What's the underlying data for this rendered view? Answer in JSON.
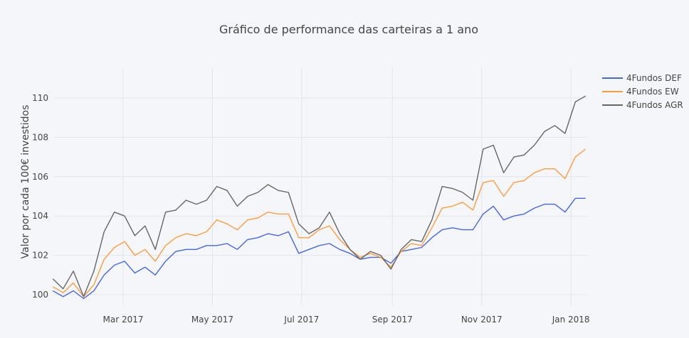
{
  "chart_data": {
    "type": "line",
    "title": "Gráfico de performance das carteiras a 1 ano",
    "xlabel": "",
    "ylabel": "Valor por cada 100€ investidos",
    "ylim": [
      99.4,
      111.5
    ],
    "xlim": [
      "2017-01-12",
      "2018-01-13"
    ],
    "yticks": [
      100,
      102,
      104,
      106,
      108,
      110
    ],
    "xticks": [
      {
        "date": "2017-03-01",
        "label": "Mar 2017"
      },
      {
        "date": "2017-05-01",
        "label": "May 2017"
      },
      {
        "date": "2017-07-01",
        "label": "Jul 2017"
      },
      {
        "date": "2017-09-01",
        "label": "Sep 2017"
      },
      {
        "date": "2017-11-01",
        "label": "Nov 2017"
      },
      {
        "date": "2018-01-01",
        "label": "Jan 2018"
      }
    ],
    "grid": true,
    "legend_position": "top-right",
    "x_start": "2017-01-12",
    "x_step_days": 7,
    "series": [
      {
        "name": "4Fundos DEF",
        "color": "#4467e6",
        "values": [
          100.2,
          99.9,
          100.2,
          99.8,
          100.2,
          101.0,
          101.5,
          101.7,
          101.1,
          101.4,
          101.0,
          101.7,
          102.2,
          102.3,
          102.3,
          102.5,
          102.5,
          102.6,
          102.3,
          102.8,
          102.9,
          103.1,
          103.0,
          103.2,
          102.1,
          102.3,
          102.5,
          102.6,
          102.3,
          102.1,
          101.8,
          101.9,
          101.9,
          101.6,
          102.2,
          102.3,
          102.4,
          102.9,
          103.3,
          103.4,
          103.3,
          103.3,
          104.1,
          104.5,
          103.8,
          104.0,
          104.1,
          104.4,
          104.6,
          104.6,
          104.2,
          104.9,
          104.9
        ]
      },
      {
        "name": "4Fundos EW",
        "color": "#ff9c3f",
        "values": [
          100.4,
          100.1,
          100.6,
          99.9,
          100.5,
          101.8,
          102.4,
          102.7,
          102.0,
          102.3,
          101.7,
          102.5,
          102.9,
          103.1,
          103.0,
          103.2,
          103.8,
          103.6,
          103.3,
          103.8,
          103.9,
          104.2,
          104.1,
          104.1,
          102.9,
          102.9,
          103.3,
          103.5,
          102.8,
          102.3,
          101.9,
          102.1,
          101.9,
          101.4,
          102.2,
          102.6,
          102.5,
          103.4,
          104.4,
          104.5,
          104.7,
          104.3,
          105.7,
          105.8,
          105.0,
          105.7,
          105.8,
          106.2,
          106.4,
          106.4,
          105.9,
          107.0,
          107.4
        ]
      },
      {
        "name": "4Fundos AGR",
        "color": "#666666",
        "values": [
          100.8,
          100.3,
          101.2,
          99.9,
          101.2,
          103.2,
          104.2,
          104.0,
          103.0,
          103.5,
          102.3,
          104.2,
          104.3,
          104.8,
          104.6,
          104.8,
          105.5,
          105.3,
          104.5,
          105.0,
          105.2,
          105.6,
          105.3,
          105.2,
          103.6,
          103.1,
          103.4,
          104.2,
          103.1,
          102.3,
          101.8,
          102.2,
          102.0,
          101.3,
          102.3,
          102.8,
          102.7,
          103.8,
          105.5,
          105.4,
          105.2,
          104.8,
          107.4,
          107.6,
          106.2,
          107.0,
          107.1,
          107.6,
          108.3,
          108.6,
          108.2,
          109.8,
          110.1
        ]
      }
    ]
  }
}
